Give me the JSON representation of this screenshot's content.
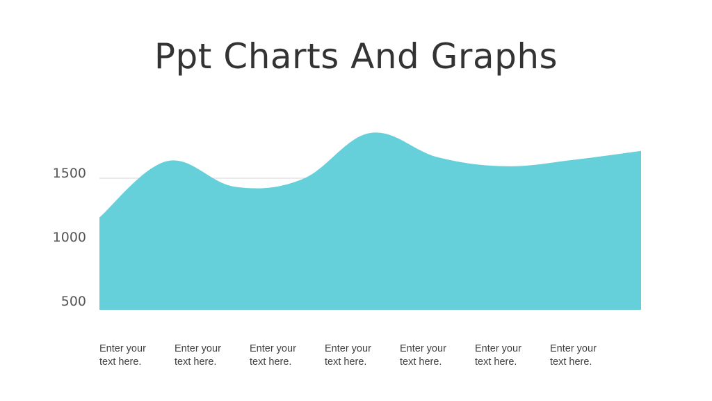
{
  "slide": {
    "title": "Ppt Charts And Graphs"
  },
  "chart_data": {
    "type": "area",
    "title": "Ppt Charts And Graphs",
    "xlabel": "",
    "ylabel": "",
    "categories": [
      "Enter your text here.",
      "Enter your text here.",
      "Enter your text here.",
      "Enter your text here.",
      "Enter your text here.",
      "Enter your text here.",
      "Enter your text here."
    ],
    "category_lines": [
      [
        "Enter your",
        "text here."
      ],
      [
        "Enter your",
        "text here."
      ],
      [
        "Enter your",
        "text here."
      ],
      [
        "Enter your",
        "text here."
      ],
      [
        "Enter your",
        "text here."
      ],
      [
        "Enter your",
        "text here."
      ],
      [
        "Enter your",
        "text here."
      ]
    ],
    "yticks": [
      500,
      1000,
      1500
    ],
    "ytick_labels": [
      "500",
      "1000",
      "1500"
    ],
    "ylim": [
      500,
      1500
    ],
    "smooth": true,
    "gridline_at": 1500,
    "series": [
      {
        "x": [
          0,
          1,
          2,
          3,
          4,
          5,
          6,
          7,
          8
        ],
        "values": [
          1150,
          1590,
          1390,
          1450,
          1810,
          1620,
          1550,
          1600,
          1670
        ],
        "color": "#66d0da"
      }
    ],
    "grid": false,
    "legend": "none"
  }
}
